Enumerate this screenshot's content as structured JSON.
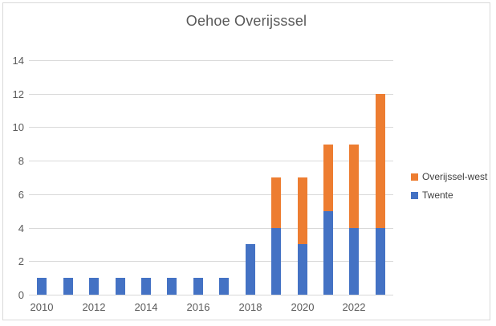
{
  "chart_data": {
    "type": "bar",
    "stacked": true,
    "title": "Oehoe Overijsssel",
    "categories": [
      "2010",
      "2011",
      "2012",
      "2013",
      "2014",
      "2015",
      "2016",
      "2017",
      "2018",
      "2019",
      "2020",
      "2021",
      "2022",
      "2023"
    ],
    "series": [
      {
        "name": "Twente",
        "color": "#4472C4",
        "values": [
          1,
          1,
          1,
          1,
          1,
          1,
          1,
          1,
          3,
          4,
          3,
          5,
          4,
          4
        ]
      },
      {
        "name": "Overijssel-west",
        "color": "#ED7D31",
        "values": [
          0,
          0,
          0,
          0,
          0,
          0,
          0,
          0,
          0,
          3,
          4,
          4,
          5,
          8
        ]
      }
    ],
    "totals": [
      1,
      1,
      1,
      1,
      1,
      1,
      1,
      1,
      3,
      7,
      7,
      9,
      9,
      12
    ],
    "ylim": [
      0,
      14
    ],
    "yticks": [
      0,
      2,
      4,
      6,
      8,
      10,
      12,
      14
    ],
    "xtick_labels": [
      "2010",
      "2012",
      "2014",
      "2016",
      "2018",
      "2020",
      "2022"
    ],
    "xtick_every": 2,
    "grid": true,
    "legend_position": "right",
    "legend_order": [
      "Overijssel-west",
      "Twente"
    ]
  },
  "colors": {
    "grid": "#D9D9D9",
    "border": "#D9D9D9",
    "axis_text": "#595959",
    "title_text": "#595959",
    "legend_text": "#404040",
    "background": "#FFFFFF"
  }
}
